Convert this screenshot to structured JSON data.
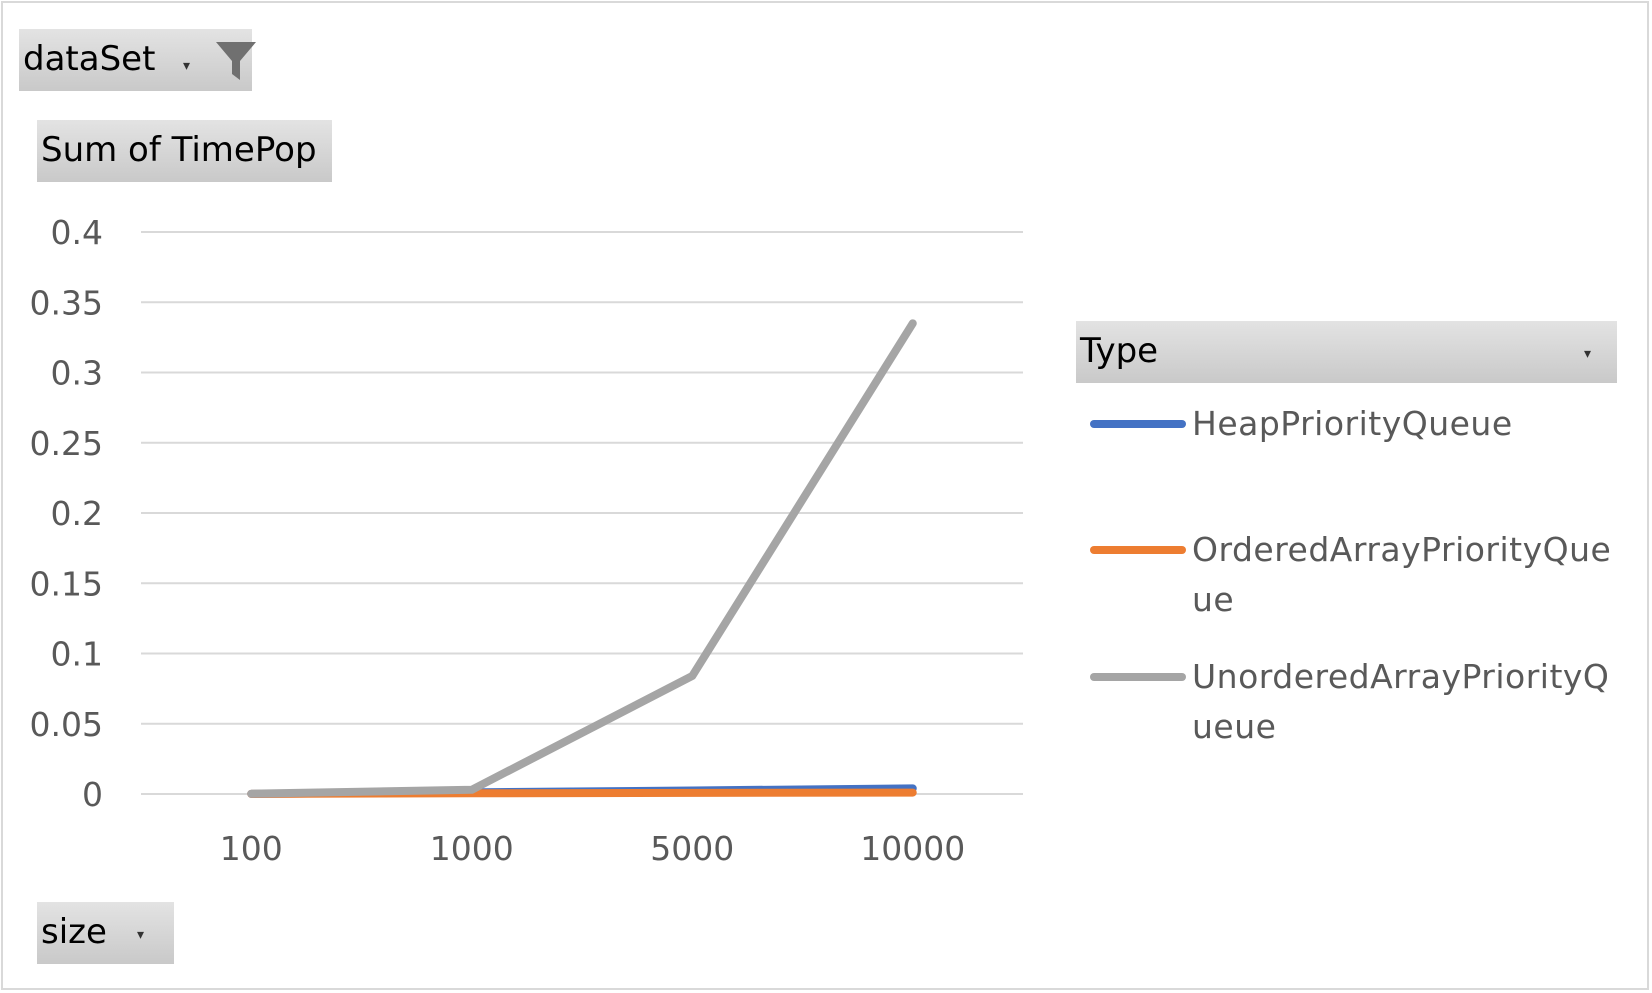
{
  "filters": {
    "dataset_label": "dataSet",
    "value_label": "Sum of TimePop",
    "axis_label": "size",
    "legend_title": "Type"
  },
  "icons": {
    "dropdown": "chevron-down-icon",
    "filter": "funnel-icon"
  },
  "chart_data": {
    "type": "line",
    "title": "",
    "xlabel": "",
    "ylabel": "",
    "categories": [
      "100",
      "1000",
      "5000",
      "10000"
    ],
    "ylim": [
      0,
      0.4
    ],
    "yticks": [
      "0",
      "0.05",
      "0.1",
      "0.15",
      "0.2",
      "0.25",
      "0.3",
      "0.35",
      "0.4"
    ],
    "ytick_values": [
      0,
      0.05,
      0.1,
      0.15,
      0.2,
      0.25,
      0.3,
      0.35,
      0.4
    ],
    "grid": true,
    "legend_position": "right",
    "series": [
      {
        "name": "HeapPriorityQueue",
        "lines": [
          "HeapPriorityQueue"
        ],
        "color": "#4472C4",
        "values": [
          0.0001,
          0.0012,
          0.0025,
          0.004
        ]
      },
      {
        "name": "OrderedArrayPriorityQueue",
        "lines": [
          "OrderedArrayPriorityQue",
          "ue"
        ],
        "color": "#ED7D31",
        "values": [
          0.0001,
          0.0005,
          0.0008,
          0.001
        ]
      },
      {
        "name": "UnorderedArrayPriorityQueue",
        "lines": [
          "UnorderedArrayPriorityQ",
          "ueue"
        ],
        "color": "#A5A5A5",
        "values": [
          0.0002,
          0.003,
          0.084,
          0.335
        ]
      }
    ]
  }
}
